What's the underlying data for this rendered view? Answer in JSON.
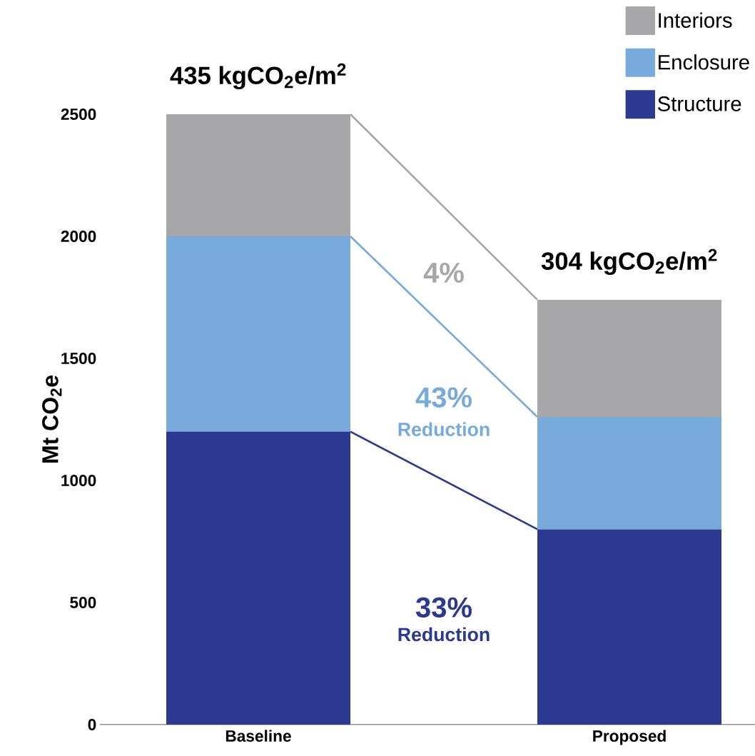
{
  "chart_data": {
    "type": "bar",
    "stacked": true,
    "categories": [
      "Baseline",
      "Proposed"
    ],
    "ylabel": "Mt CO$_{2}$e",
    "series": [
      {
        "name": "Structure",
        "color": "#2b3990",
        "values": [
          1200,
          800
        ]
      },
      {
        "name": "Enclosure",
        "color": "#78aadc",
        "values": [
          800,
          460
        ]
      },
      {
        "name": "Interiors",
        "color": "#a7a7aa",
        "values": [
          500,
          480
        ]
      }
    ],
    "ylim": [
      0,
      2500
    ],
    "yticks": [
      0,
      500,
      1000,
      1500,
      2000,
      2500
    ],
    "legend": "top right",
    "annotations": [
      {
        "text": "435 kgCO$_{2}$e/m$^{2}$",
        "x": "Baseline",
        "y": 2500
      },
      {
        "text": "304 kgCO$_{2}$e/m$^{2}$",
        "x": "Proposed",
        "y": 1740
      },
      "4%",
      "43%",
      "Reduction",
      "33%",
      "Reduction"
    ]
  }
}
